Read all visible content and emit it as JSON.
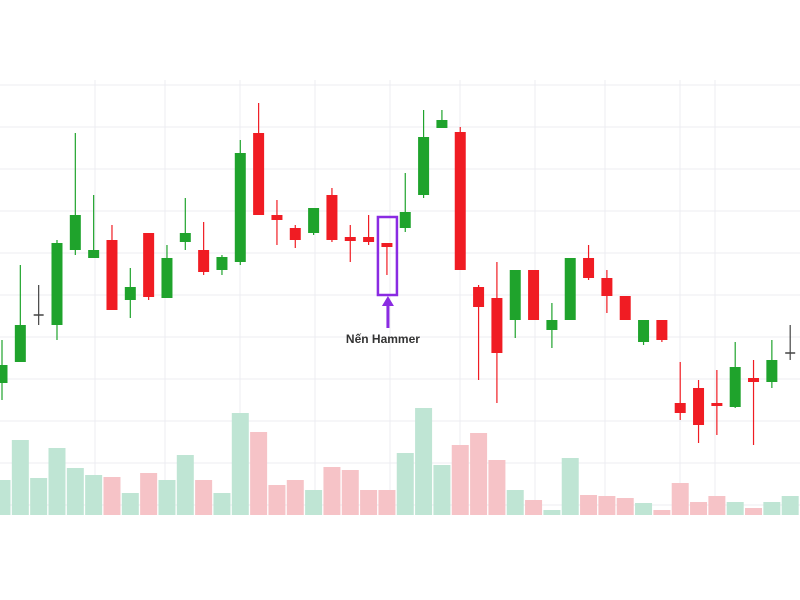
{
  "chart_data": {
    "type": "candlestick",
    "open": [
      217,
      238,
      285,
      275,
      350,
      342,
      360,
      300,
      367,
      302,
      358,
      350,
      330,
      338,
      467,
      385,
      372,
      367,
      405,
      363,
      363,
      357,
      372,
      405,
      472,
      468,
      313,
      302,
      280,
      330,
      270,
      280,
      342,
      322,
      304,
      258,
      280,
      197,
      212,
      197,
      193,
      222,
      218,
      247
    ],
    "close": [
      235,
      275,
      285,
      357,
      385,
      350,
      290,
      313,
      303,
      342,
      367,
      328,
      343,
      447,
      385,
      380,
      360,
      392,
      360,
      359,
      358,
      353,
      388,
      463,
      480,
      330,
      293,
      247,
      330,
      280,
      280,
      342,
      322,
      304,
      280,
      280,
      260,
      187,
      175,
      194,
      233,
      218,
      240,
      247
    ],
    "high": [
      260,
      335,
      315,
      360,
      467,
      405,
      375,
      332,
      367,
      355,
      402,
      378,
      345,
      460,
      497,
      400,
      375,
      392,
      412,
      375,
      385,
      357,
      427,
      490,
      490,
      473,
      315,
      338,
      330,
      330,
      297,
      342,
      355,
      330,
      304,
      280,
      280,
      238,
      220,
      230,
      258,
      240,
      260,
      275
    ],
    "low": [
      200,
      238,
      275,
      260,
      345,
      342,
      290,
      282,
      300,
      302,
      350,
      325,
      325,
      335,
      385,
      355,
      352,
      365,
      358,
      338,
      355,
      325,
      368,
      402,
      472,
      330,
      220,
      197,
      262,
      280,
      252,
      280,
      320,
      287,
      280,
      255,
      258,
      180,
      157,
      165,
      192,
      155,
      212,
      240
    ],
    "volume": [
      35,
      75,
      37,
      67,
      47,
      40,
      38,
      22,
      42,
      35,
      60,
      35,
      22,
      102,
      83,
      30,
      35,
      25,
      48,
      45,
      25,
      25,
      62,
      107,
      50,
      70,
      82,
      55,
      25,
      15,
      5,
      57,
      20,
      19,
      17,
      12,
      5,
      32,
      13,
      19,
      13,
      7,
      13,
      19
    ],
    "ylim": [
      80,
      520
    ],
    "volume_lim": [
      0,
      120
    ],
    "up_color": "#1fa32c",
    "down_color": "#f01c23",
    "doji_color": "#444444",
    "volume_up_color": "#bfe5d4",
    "volume_down_color": "#f6c3c7",
    "grid": true,
    "annotation": "Nến Hammer"
  }
}
